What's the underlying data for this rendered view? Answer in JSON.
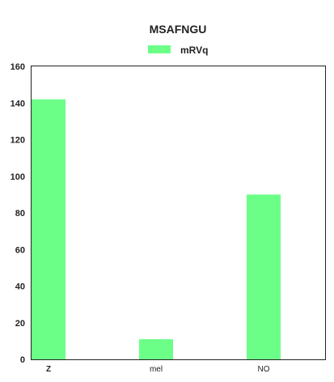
{
  "chart_data": {
    "type": "bar",
    "title": "MSAFNGU",
    "categories": [
      "Z",
      "mel",
      "NO"
    ],
    "series": [
      {
        "name": "mRVq",
        "values": [
          142,
          11,
          90
        ],
        "color": "#6cff88"
      }
    ],
    "xlabel": "",
    "ylabel": "",
    "ylim": [
      0,
      160
    ],
    "yticks": [
      0,
      20,
      40,
      60,
      80,
      100,
      120,
      140,
      160
    ],
    "grid": false,
    "legend_position": "top-center"
  }
}
